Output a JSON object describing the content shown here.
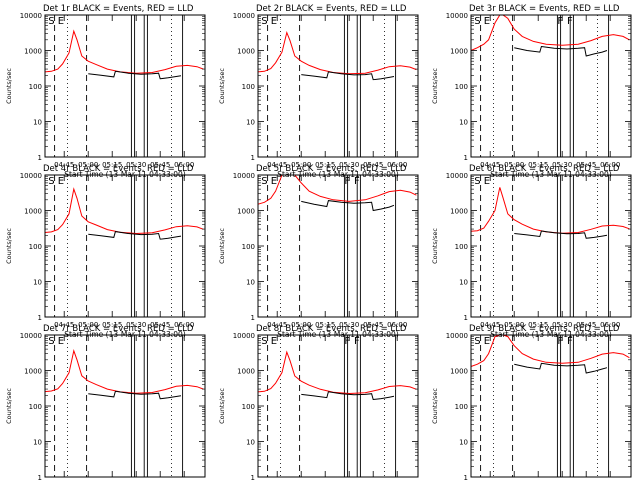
{
  "figure": {
    "panel_title_template": "{det} BLACK = Events, RED = LLD",
    "y_axis_label": "Counts/sec",
    "x_axis_label": "Start Time (13-Mar-11 04:33:00)"
  },
  "colors": {
    "events": "#000000",
    "lld": "#ff0000",
    "axes": "#000000"
  },
  "chart_data": [
    {
      "type": "line",
      "title": "Det 1r BLACK = Events, RED = LLD",
      "xlabel": "Start Time (13-Mar-11 04:33:00)",
      "ylabel": "Counts/sec",
      "y_scale": "log",
      "xlim": [
        "04:33",
        "06:13"
      ],
      "ylim": [
        1,
        10000
      ],
      "x_ticks": [
        "04:45",
        "05:00",
        "05:15",
        "05:30",
        "05:45",
        "06:00"
      ],
      "y_ticks": [
        "1",
        "10",
        "100",
        "1000",
        "10000"
      ],
      "markers": [
        "S",
        "E"
      ],
      "series": [
        {
          "name": "LLD",
          "color": "#ff0000",
          "x": [
            "04:33",
            "04:37",
            "04:41",
            "04:44",
            "04:48",
            "04:51",
            "04:53",
            "04:56",
            "05:00",
            "05:05",
            "05:12",
            "05:20",
            "05:30",
            "05:40",
            "05:48",
            "05:55",
            "06:02",
            "06:08",
            "06:12"
          ],
          "values": [
            250,
            260,
            300,
            420,
            850,
            3500,
            2000,
            700,
            500,
            400,
            300,
            250,
            230,
            240,
            290,
            360,
            380,
            350,
            300
          ]
        },
        {
          "name": "Events",
          "color": "#000000",
          "x": [
            "05:00",
            "05:08",
            "05:16",
            "05:17",
            "05:25",
            "05:33",
            "05:40",
            "05:44",
            "05:45",
            "05:50",
            "05:55",
            "05:58"
          ],
          "values": [
            220,
            200,
            180,
            260,
            230,
            215,
            220,
            230,
            160,
            170,
            185,
            195
          ]
        }
      ]
    },
    {
      "type": "line",
      "title": "Det 2r BLACK = Events, RED = LLD",
      "xlabel": "Start Time (13-Mar-11 04:33:00)",
      "ylabel": "Counts/sec",
      "y_scale": "log",
      "xlim": [
        "04:33",
        "06:13"
      ],
      "ylim": [
        1,
        10000
      ],
      "x_ticks": [
        "04:45",
        "05:00",
        "05:15",
        "05:30",
        "05:45",
        "06:00"
      ],
      "y_ticks": [
        "1",
        "10",
        "100",
        "1000",
        "10000"
      ],
      "markers": [
        "S",
        "E"
      ],
      "series": [
        {
          "name": "LLD",
          "color": "#ff0000",
          "x": [
            "04:33",
            "04:37",
            "04:41",
            "04:44",
            "04:48",
            "04:51",
            "04:53",
            "04:56",
            "05:00",
            "05:05",
            "05:12",
            "05:20",
            "05:30",
            "05:40",
            "05:48",
            "05:55",
            "06:02",
            "06:08",
            "06:12"
          ],
          "values": [
            250,
            260,
            310,
            450,
            900,
            3200,
            1900,
            700,
            500,
            380,
            290,
            240,
            220,
            230,
            280,
            350,
            370,
            340,
            290
          ]
        },
        {
          "name": "Events",
          "color": "#000000",
          "x": [
            "05:00",
            "05:08",
            "05:16",
            "05:17",
            "05:25",
            "05:33",
            "05:40",
            "05:44",
            "05:45",
            "05:50",
            "05:55",
            "05:58"
          ],
          "values": [
            210,
            190,
            170,
            250,
            220,
            205,
            210,
            220,
            150,
            160,
            175,
            185
          ]
        }
      ]
    },
    {
      "type": "line",
      "title": "Det 3r BLACK = Events, RED = LLD",
      "xlabel": "Start Time (13-Mar-11 04:33:00)",
      "ylabel": "Counts/sec",
      "y_scale": "log",
      "xlim": [
        "04:33",
        "06:13"
      ],
      "ylim": [
        1,
        10000
      ],
      "x_ticks": [
        "04:45",
        "05:00",
        "05:15",
        "05:30",
        "05:45",
        "06:00"
      ],
      "y_ticks": [
        "1",
        "10",
        "100",
        "1000",
        "10000"
      ],
      "markers": [
        "S",
        "E",
        "F",
        "F"
      ],
      "series": [
        {
          "name": "LLD",
          "color": "#ff0000",
          "x": [
            "04:33",
            "04:37",
            "04:41",
            "04:44",
            "04:48",
            "04:51",
            "04:53",
            "04:56",
            "05:00",
            "05:05",
            "05:12",
            "05:20",
            "05:30",
            "05:40",
            "05:48",
            "05:55",
            "06:02",
            "06:08",
            "06:12"
          ],
          "values": [
            1000,
            1200,
            1500,
            2000,
            6000,
            10000,
            10000,
            8000,
            4000,
            2500,
            1800,
            1500,
            1400,
            1500,
            1900,
            2500,
            2800,
            2500,
            2000
          ]
        },
        {
          "name": "Events",
          "color": "#000000",
          "x": [
            "05:00",
            "05:08",
            "05:16",
            "05:17",
            "05:25",
            "05:33",
            "05:40",
            "05:44",
            "05:45",
            "05:50",
            "05:55",
            "05:58"
          ],
          "values": [
            1200,
            1000,
            900,
            1300,
            1150,
            1100,
            1150,
            1200,
            700,
            800,
            900,
            1000
          ]
        }
      ]
    },
    {
      "type": "line",
      "title": "Det 4r BLACK = Events, RED = LLD",
      "xlabel": "Start Time (13-Mar-11 04:33:00)",
      "ylabel": "Counts/sec",
      "y_scale": "log",
      "xlim": [
        "04:33",
        "06:13"
      ],
      "ylim": [
        1,
        10000
      ],
      "x_ticks": [
        "04:45",
        "05:00",
        "05:15",
        "05:30",
        "05:45",
        "06:00"
      ],
      "y_ticks": [
        "1",
        "10",
        "100",
        "1000",
        "10000"
      ],
      "markers": [
        "S",
        "E"
      ],
      "series": [
        {
          "name": "LLD",
          "color": "#ff0000",
          "x": [
            "04:33",
            "04:37",
            "04:41",
            "04:44",
            "04:48",
            "04:51",
            "04:53",
            "04:56",
            "05:00",
            "05:05",
            "05:12",
            "05:20",
            "05:30",
            "05:40",
            "05:48",
            "05:55",
            "06:02",
            "06:08",
            "06:12"
          ],
          "values": [
            240,
            250,
            290,
            400,
            800,
            4000,
            2200,
            700,
            480,
            390,
            290,
            245,
            225,
            235,
            285,
            350,
            370,
            345,
            295
          ]
        },
        {
          "name": "Events",
          "color": "#000000",
          "x": [
            "05:00",
            "05:08",
            "05:16",
            "05:17",
            "05:25",
            "05:33",
            "05:40",
            "05:44",
            "05:45",
            "05:50",
            "05:55",
            "05:58"
          ],
          "values": [
            215,
            195,
            175,
            255,
            225,
            210,
            215,
            225,
            155,
            165,
            180,
            190
          ]
        }
      ]
    },
    {
      "type": "line",
      "title": "Det 5r BLACK = Events, RED = LLD",
      "xlabel": "Start Time (13-Mar-11 04:33:00)",
      "ylabel": "Counts/sec",
      "y_scale": "log",
      "xlim": [
        "04:33",
        "06:13"
      ],
      "ylim": [
        1,
        10000
      ],
      "x_ticks": [
        "04:45",
        "05:00",
        "05:15",
        "05:30",
        "05:45",
        "06:00"
      ],
      "y_ticks": [
        "1",
        "10",
        "100",
        "1000",
        "10000"
      ],
      "markers": [
        "S",
        "E",
        "F",
        "F"
      ],
      "series": [
        {
          "name": "LLD",
          "color": "#ff0000",
          "x": [
            "04:33",
            "04:37",
            "04:41",
            "04:44",
            "04:48",
            "04:51",
            "04:53",
            "04:56",
            "05:00",
            "05:05",
            "05:12",
            "05:20",
            "05:30",
            "05:40",
            "05:48",
            "05:55",
            "06:02",
            "06:08",
            "06:12"
          ],
          "values": [
            1500,
            1700,
            2200,
            3500,
            10000,
            10000,
            10000,
            10000,
            6000,
            3500,
            2500,
            2000,
            1800,
            2000,
            2600,
            3400,
            3700,
            3300,
            2700
          ]
        },
        {
          "name": "Events",
          "color": "#000000",
          "x": [
            "05:00",
            "05:08",
            "05:16",
            "05:17",
            "05:25",
            "05:33",
            "05:40",
            "05:44",
            "05:45",
            "05:50",
            "05:55",
            "05:58"
          ],
          "values": [
            1800,
            1500,
            1300,
            1900,
            1700,
            1600,
            1650,
            1700,
            1000,
            1100,
            1250,
            1400
          ]
        }
      ]
    },
    {
      "type": "line",
      "title": "Det 6r BLACK = Events, RED = LLD",
      "xlabel": "Start Time (13-Mar-11 04:33:00)",
      "ylabel": "Counts/sec",
      "y_scale": "log",
      "xlim": [
        "04:33",
        "06:13"
      ],
      "ylim": [
        1,
        10000
      ],
      "x_ticks": [
        "04:45",
        "05:00",
        "05:15",
        "05:30",
        "05:45",
        "06:00"
      ],
      "y_ticks": [
        "1",
        "10",
        "100",
        "1000",
        "10000"
      ],
      "markers": [
        "S",
        "E"
      ],
      "series": [
        {
          "name": "LLD",
          "color": "#ff0000",
          "x": [
            "04:33",
            "04:37",
            "04:41",
            "04:44",
            "04:48",
            "04:51",
            "04:53",
            "04:56",
            "05:00",
            "05:05",
            "05:12",
            "05:20",
            "05:30",
            "05:40",
            "05:48",
            "05:55",
            "06:02",
            "06:08",
            "06:12"
          ],
          "values": [
            260,
            270,
            320,
            500,
            1000,
            4500,
            2300,
            800,
            550,
            410,
            300,
            250,
            230,
            240,
            295,
            365,
            385,
            355,
            305
          ]
        },
        {
          "name": "Events",
          "color": "#000000",
          "x": [
            "05:00",
            "05:08",
            "05:16",
            "05:17",
            "05:25",
            "05:33",
            "05:40",
            "05:44",
            "05:45",
            "05:50",
            "05:55",
            "05:58"
          ],
          "values": [
            225,
            205,
            185,
            265,
            235,
            220,
            225,
            235,
            165,
            175,
            190,
            200
          ]
        }
      ]
    },
    {
      "type": "line",
      "title": "Det 7r BLACK = Events, RED = LLD",
      "xlabel": "Start Time (13-Mar-11 04:33:00)",
      "ylabel": "Counts/sec",
      "y_scale": "log",
      "xlim": [
        "04:33",
        "06:13"
      ],
      "ylim": [
        1,
        10000
      ],
      "x_ticks": [
        "04:45",
        "05:00",
        "05:15",
        "05:30",
        "05:45",
        "06:00"
      ],
      "y_ticks": [
        "1",
        "10",
        "100",
        "1000",
        "10000"
      ],
      "markers": [
        "S",
        "E"
      ],
      "series": [
        {
          "name": "LLD",
          "color": "#ff0000",
          "x": [
            "04:33",
            "04:37",
            "04:41",
            "04:44",
            "04:48",
            "04:51",
            "04:53",
            "04:56",
            "05:00",
            "05:05",
            "05:12",
            "05:20",
            "05:30",
            "05:40",
            "05:48",
            "05:55",
            "06:02",
            "06:08",
            "06:12"
          ],
          "values": [
            255,
            265,
            305,
            430,
            860,
            3600,
            2000,
            710,
            505,
            400,
            300,
            250,
            230,
            240,
            290,
            360,
            380,
            350,
            300
          ]
        },
        {
          "name": "Events",
          "color": "#000000",
          "x": [
            "05:00",
            "05:08",
            "05:16",
            "05:17",
            "05:25",
            "05:33",
            "05:40",
            "05:44",
            "05:45",
            "05:50",
            "05:55",
            "05:58"
          ],
          "values": [
            220,
            200,
            180,
            260,
            230,
            215,
            220,
            230,
            160,
            170,
            185,
            195
          ]
        }
      ]
    },
    {
      "type": "line",
      "title": "Det 8r BLACK = Events, RED = LLD",
      "xlabel": "Start Time (13-Mar-11 04:33:00)",
      "ylabel": "Counts/sec",
      "y_scale": "log",
      "xlim": [
        "04:33",
        "06:13"
      ],
      "ylim": [
        1,
        10000
      ],
      "x_ticks": [
        "04:45",
        "05:00",
        "05:15",
        "05:30",
        "05:45",
        "06:00"
      ],
      "y_ticks": [
        "1",
        "10",
        "100",
        "1000",
        "10000"
      ],
      "markers": [
        "S",
        "E",
        "F",
        "F"
      ],
      "series": [
        {
          "name": "LLD",
          "color": "#ff0000",
          "x": [
            "04:33",
            "04:37",
            "04:41",
            "04:44",
            "04:48",
            "04:51",
            "04:53",
            "04:56",
            "05:00",
            "05:05",
            "05:12",
            "05:20",
            "05:30",
            "05:40",
            "05:48",
            "05:55",
            "06:02",
            "06:08",
            "06:12"
          ],
          "values": [
            250,
            260,
            310,
            440,
            880,
            3300,
            1900,
            700,
            500,
            385,
            295,
            245,
            225,
            235,
            285,
            355,
            375,
            345,
            295
          ]
        },
        {
          "name": "Events",
          "color": "#000000",
          "x": [
            "05:00",
            "05:08",
            "05:16",
            "05:17",
            "05:25",
            "05:33",
            "05:40",
            "05:44",
            "05:45",
            "05:50",
            "05:55",
            "05:58"
          ],
          "values": [
            212,
            192,
            172,
            252,
            222,
            207,
            212,
            222,
            152,
            162,
            177,
            187
          ]
        }
      ]
    },
    {
      "type": "line",
      "title": "Det 9r BLACK = Events, RED = LLD",
      "xlabel": "Start Time (13-Mar-11 04:33:00)",
      "ylabel": "Counts/sec",
      "y_scale": "log",
      "xlim": [
        "04:33",
        "06:13"
      ],
      "ylim": [
        1,
        10000
      ],
      "x_ticks": [
        "04:45",
        "05:00",
        "05:15",
        "05:30",
        "05:45",
        "06:00"
      ],
      "y_ticks": [
        "1",
        "10",
        "100",
        "1000",
        "10000"
      ],
      "markers": [
        "S",
        "E",
        "F",
        "F"
      ],
      "series": [
        {
          "name": "LLD",
          "color": "#ff0000",
          "x": [
            "04:33",
            "04:37",
            "04:41",
            "04:44",
            "04:48",
            "04:51",
            "04:53",
            "04:56",
            "05:00",
            "05:05",
            "05:12",
            "05:20",
            "05:30",
            "05:40",
            "05:48",
            "05:55",
            "06:02",
            "06:08",
            "06:12"
          ],
          "values": [
            1300,
            1500,
            1900,
            3000,
            9000,
            10000,
            10000,
            9000,
            5000,
            3000,
            2100,
            1700,
            1600,
            1700,
            2200,
            2900,
            3200,
            2900,
            2300
          ]
        },
        {
          "name": "Events",
          "color": "#000000",
          "x": [
            "05:00",
            "05:08",
            "05:16",
            "05:17",
            "05:25",
            "05:33",
            "05:40",
            "05:44",
            "05:45",
            "05:50",
            "05:55",
            "05:58"
          ],
          "values": [
            1500,
            1250,
            1100,
            1600,
            1400,
            1350,
            1400,
            1450,
            850,
            950,
            1100,
            1200
          ]
        }
      ]
    }
  ]
}
